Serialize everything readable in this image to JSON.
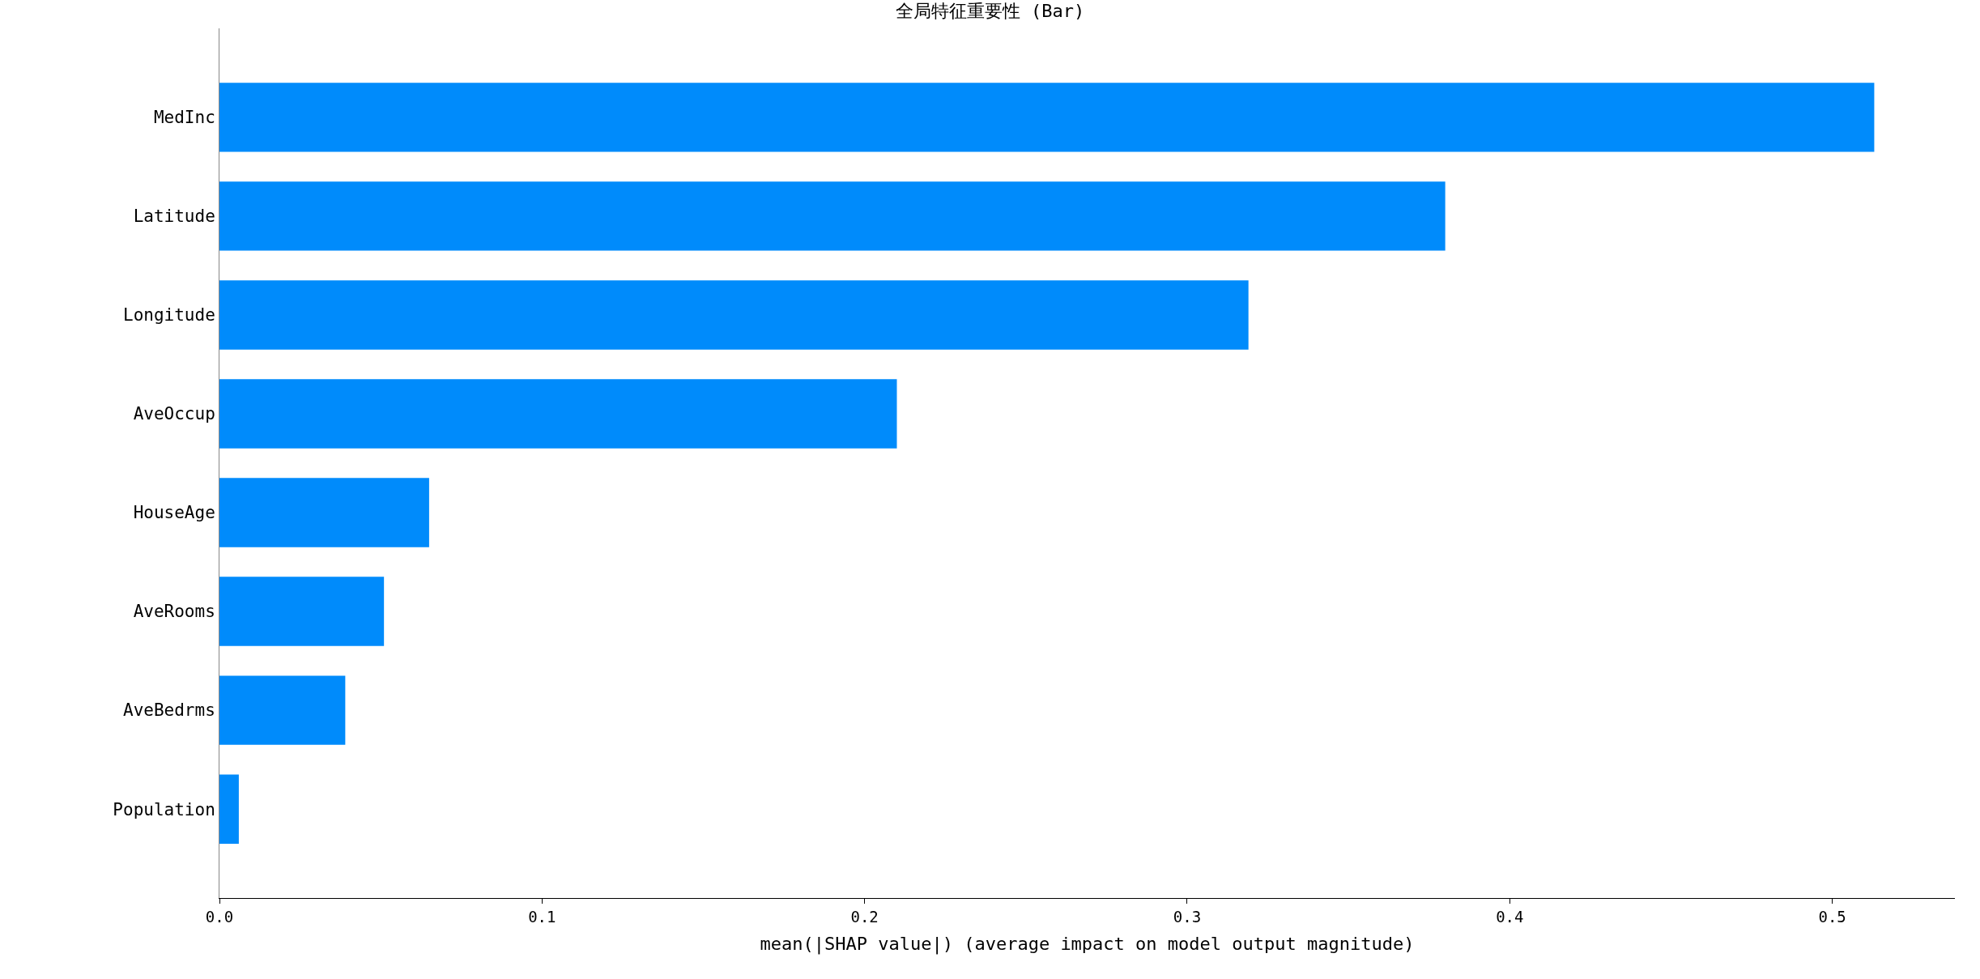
{
  "chart_data": {
    "type": "bar",
    "orientation": "horizontal",
    "title": "全局特征重要性 (Bar)",
    "xlabel": "mean(|SHAP value|) (average impact on model output magnitude)",
    "categories": [
      "MedInc",
      "Latitude",
      "Longitude",
      "AveOccup",
      "HouseAge",
      "AveRooms",
      "AveBedrms",
      "Population"
    ],
    "values": [
      0.513,
      0.38,
      0.319,
      0.21,
      0.065,
      0.051,
      0.039,
      0.006
    ],
    "color": "#008bfb",
    "xlim": [
      0,
      0.538
    ],
    "xticks": [
      {
        "value": 0,
        "label": "0.0"
      },
      0.1,
      0.2,
      0.3,
      0.4,
      0.5
    ]
  }
}
